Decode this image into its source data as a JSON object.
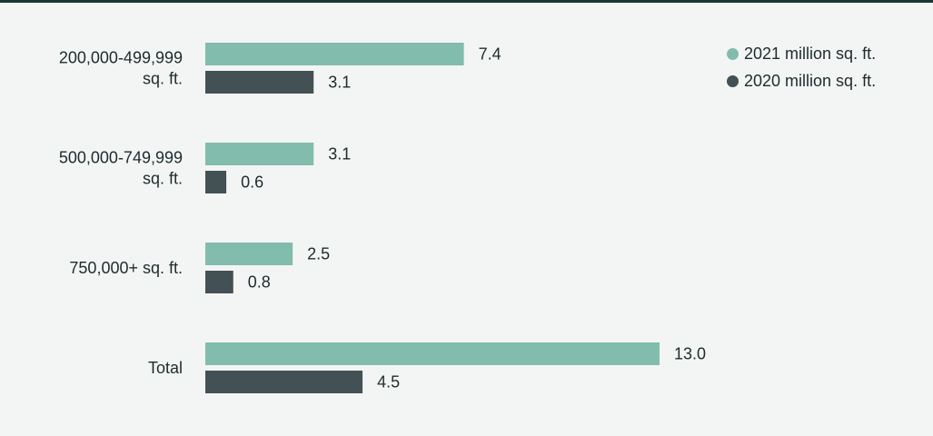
{
  "colors": {
    "background": "#f3f5f4",
    "series_2021": "#82bcac",
    "series_2020": "#435155"
  },
  "chart_data": {
    "type": "bar",
    "orientation": "horizontal",
    "categories": [
      [
        "200,000-499,999",
        "sq. ft."
      ],
      [
        "500,000-749,999",
        "sq. ft."
      ],
      [
        "750,000+ sq. ft."
      ],
      [
        "Total"
      ]
    ],
    "series": [
      {
        "name": "2021 million sq. ft.",
        "color": "#82bcac",
        "values": [
          7.4,
          3.1,
          2.5,
          13.0
        ],
        "labels": [
          "7.4",
          "3.1",
          "2.5",
          "13.0"
        ]
      },
      {
        "name": "2020 million sq. ft.",
        "color": "#435155",
        "values": [
          3.1,
          0.6,
          0.8,
          4.5
        ],
        "labels": [
          "3.1",
          "0.6",
          "0.8",
          "4.5"
        ]
      }
    ],
    "xlim": [
      0,
      13.0
    ],
    "grid": false,
    "legend_position": "top-right",
    "title": "",
    "xlabel": "",
    "ylabel": ""
  }
}
